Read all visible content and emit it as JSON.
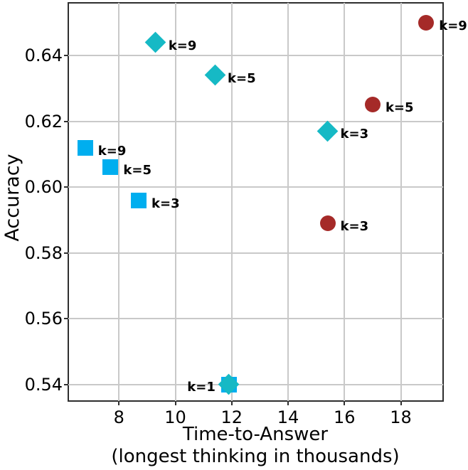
{
  "figure": {
    "ylabel": "Accuracy",
    "xlabel_line1": "Time-to-Answer",
    "xlabel_line2": "(longest thinking in thousands)"
  },
  "chart_data": {
    "type": "scatter",
    "title": "",
    "xlabel": "Time-to-Answer (longest thinking in thousands)",
    "ylabel": "Accuracy",
    "xlim": [
      6.2,
      19.5
    ],
    "ylim": [
      0.535,
      0.656
    ],
    "xticks": [
      8,
      10,
      12,
      14,
      16,
      18
    ],
    "xtick_labels": [
      "8",
      "10",
      "12",
      "14",
      "16",
      "18"
    ],
    "yticks": [
      0.54,
      0.56,
      0.58,
      0.6,
      0.62,
      0.64
    ],
    "ytick_labels": [
      "0.54",
      "0.56",
      "0.58",
      "0.60",
      "0.62",
      "0.64"
    ],
    "grid": true,
    "legend": "none",
    "grid_color": "#c9c9c9",
    "spine_color": "#2e2e2e",
    "annotation_color": "#000000",
    "series": [
      {
        "name": "blue-squares",
        "marker": "square",
        "color": "#00aeef",
        "points": [
          {
            "label": "k=1",
            "x": 11.9,
            "y": 0.54,
            "label_side": "left"
          },
          {
            "label": "k=3",
            "x": 8.7,
            "y": 0.596,
            "label_side": "right"
          },
          {
            "label": "k=5",
            "x": 7.7,
            "y": 0.606,
            "label_side": "right"
          },
          {
            "label": "k=9",
            "x": 6.8,
            "y": 0.612,
            "label_side": "right"
          }
        ]
      },
      {
        "name": "teal-diamonds",
        "marker": "diamond",
        "color": "#16b9c5",
        "points": [
          {
            "label": "k=1",
            "x": 11.9,
            "y": 0.54,
            "label_side": "none"
          },
          {
            "label": "k=3",
            "x": 15.4,
            "y": 0.617,
            "label_side": "right"
          },
          {
            "label": "k=5",
            "x": 11.4,
            "y": 0.634,
            "label_side": "right"
          },
          {
            "label": "k=9",
            "x": 9.3,
            "y": 0.644,
            "label_side": "right"
          }
        ]
      },
      {
        "name": "darkred-circles",
        "marker": "circle",
        "color": "#a52a28",
        "points": [
          {
            "label": "k=3",
            "x": 15.4,
            "y": 0.589,
            "label_side": "right"
          },
          {
            "label": "k=5",
            "x": 17.0,
            "y": 0.625,
            "label_side": "right"
          },
          {
            "label": "k=9",
            "x": 18.9,
            "y": 0.65,
            "label_side": "right"
          }
        ]
      }
    ]
  }
}
